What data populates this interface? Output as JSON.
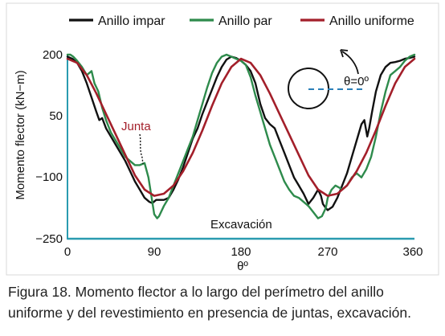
{
  "caption": "Figura 18. Momento flector a lo largo del perímetro del anillo uniforme y del revestimiento en presencia de juntas, excavación.",
  "chart_data": {
    "type": "line",
    "xlabel": "θº",
    "ylabel": "Momento flector (kN−m)",
    "xlim": [
      0,
      360
    ],
    "ylim": [
      -250,
      200
    ],
    "xticks": [
      "0",
      "90",
      "180",
      "270",
      "360"
    ],
    "yticks": [
      "200",
      "50",
      "−100",
      "−250"
    ],
    "legend_position": "top",
    "annotations": {
      "junta": "Junta",
      "excavacion": "Excavación",
      "theta_zero": "θ=0º"
    },
    "colors": {
      "axis": "#2a9bb0",
      "impar": "#111111",
      "par": "#2e8b4c",
      "uniforme": "#a31f2a",
      "junta_text": "#a31f2a",
      "inset_dash": "#2a7fb8"
    },
    "series": [
      {
        "name": "Anillo impar",
        "color": "#111111",
        "x": [
          0,
          5,
          10,
          15,
          20,
          25,
          30,
          33,
          36,
          40,
          45,
          50,
          55,
          60,
          65,
          70,
          75,
          80,
          85,
          88,
          92,
          95,
          100,
          105,
          110,
          115,
          120,
          125,
          130,
          135,
          140,
          145,
          150,
          155,
          160,
          165,
          170,
          175,
          180,
          185,
          190,
          195,
          200,
          205,
          210,
          215,
          220,
          225,
          230,
          235,
          240,
          245,
          250,
          255,
          260,
          263,
          265,
          268,
          270,
          275,
          280,
          285,
          290,
          295,
          300,
          305,
          308,
          311,
          313,
          316,
          320,
          325,
          330,
          335,
          340,
          345,
          350,
          355,
          360
        ],
        "values": [
          195,
          190,
          180,
          160,
          130,
          95,
          60,
          40,
          45,
          20,
          0,
          -20,
          -40,
          -60,
          -85,
          -110,
          -130,
          -150,
          -160,
          -163,
          -155,
          -155,
          -155,
          -150,
          -130,
          -105,
          -75,
          -40,
          -5,
          20,
          55,
          85,
          115,
          145,
          170,
          188,
          195,
          192,
          185,
          175,
          160,
          130,
          80,
          45,
          30,
          20,
          -10,
          -40,
          -70,
          -100,
          -120,
          -140,
          -165,
          -150,
          -130,
          -145,
          -165,
          -175,
          -180,
          -172,
          -150,
          -120,
          -90,
          -50,
          -10,
          30,
          40,
          0,
          20,
          60,
          110,
          150,
          170,
          180,
          182,
          185,
          190,
          192,
          195
        ]
      },
      {
        "name": "Anillo par",
        "color": "#2e8b4c",
        "x": [
          0,
          3,
          6,
          10,
          15,
          20,
          25,
          28,
          32,
          36,
          40,
          45,
          50,
          55,
          60,
          65,
          70,
          75,
          80,
          84,
          88,
          90,
          93,
          95,
          100,
          105,
          110,
          115,
          120,
          125,
          130,
          135,
          140,
          145,
          150,
          155,
          160,
          165,
          170,
          175,
          180,
          185,
          190,
          195,
          200,
          205,
          210,
          215,
          220,
          225,
          230,
          235,
          240,
          245,
          250,
          255,
          260,
          264,
          268,
          270,
          274,
          278,
          282,
          285,
          290,
          295,
          300,
          305,
          310,
          315,
          320,
          325,
          330,
          335,
          340,
          345,
          350,
          355,
          360
        ],
        "values": [
          200,
          200,
          195,
          185,
          170,
          150,
          160,
          130,
          110,
          70,
          40,
          10,
          -10,
          -30,
          -50,
          -60,
          -70,
          -70,
          -65,
          -100,
          -160,
          -190,
          -200,
          -195,
          -170,
          -150,
          -120,
          -90,
          -60,
          -30,
          0,
          40,
          80,
          120,
          155,
          180,
          195,
          200,
          195,
          190,
          185,
          175,
          145,
          100,
          60,
          20,
          -20,
          -50,
          -80,
          -110,
          -130,
          -145,
          -150,
          -160,
          -170,
          -185,
          -200,
          -195,
          -175,
          -150,
          -130,
          -120,
          -125,
          -130,
          -120,
          -100,
          -90,
          -100,
          -80,
          -50,
          0,
          60,
          110,
          150,
          160,
          170,
          185,
          195,
          200
        ]
      },
      {
        "name": "Anillo uniforme",
        "color": "#a31f2a",
        "x": [
          0,
          10,
          20,
          30,
          40,
          50,
          60,
          70,
          80,
          90,
          100,
          110,
          120,
          130,
          140,
          150,
          160,
          170,
          180,
          190,
          200,
          210,
          220,
          230,
          240,
          250,
          260,
          270,
          280,
          290,
          300,
          310,
          320,
          330,
          340,
          350,
          360
        ],
        "values": [
          190,
          180,
          150,
          105,
          55,
          5,
          -45,
          -95,
          -130,
          -145,
          -140,
          -120,
          -85,
          -40,
          15,
          75,
          130,
          170,
          190,
          180,
          150,
          105,
          55,
          5,
          -45,
          -95,
          -130,
          -145,
          -140,
          -120,
          -85,
          -40,
          15,
          75,
          130,
          170,
          190
        ]
      }
    ]
  }
}
